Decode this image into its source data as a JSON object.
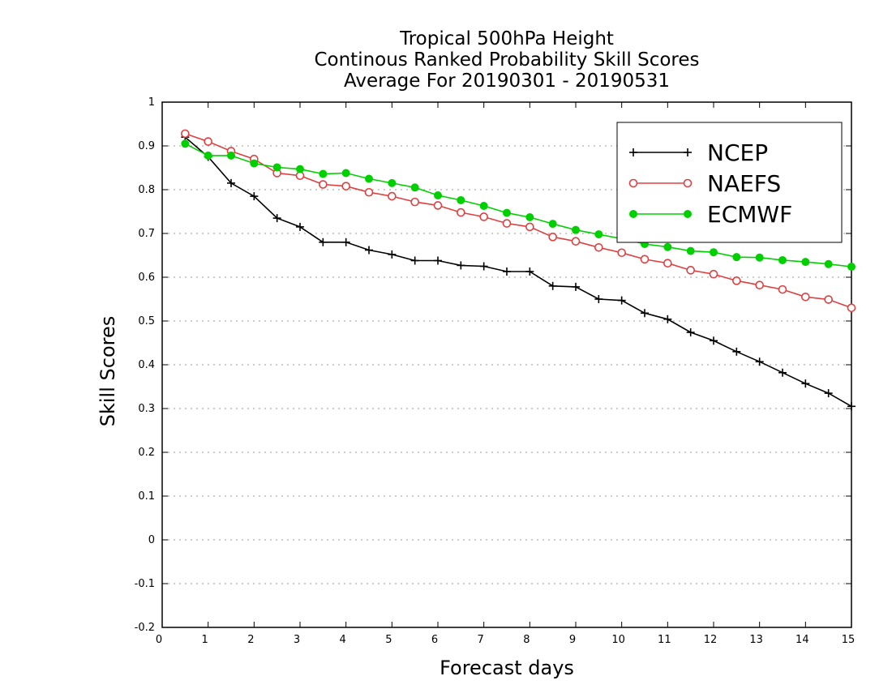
{
  "chart_data": {
    "type": "line",
    "title": [
      "Tropical 500hPa Height",
      "Continous Ranked Probability Skill Scores",
      "Average For 20190301 - 20190531"
    ],
    "xlabel": "Forecast days",
    "ylabel": "Skill Scores",
    "xlim": [
      0,
      15
    ],
    "ylim": [
      -0.2,
      1
    ],
    "xticks": [
      "0",
      "1",
      "2",
      "3",
      "4",
      "5",
      "6",
      "7",
      "8",
      "9",
      "10",
      "11",
      "12",
      "13",
      "14",
      "15"
    ],
    "yticks": [
      "-0.2",
      "-0.1",
      "0",
      "0.1",
      "0.2",
      "0.3",
      "0.4",
      "0.5",
      "0.6",
      "0.7",
      "0.8",
      "0.9",
      "1"
    ],
    "grid": "horizontal-dotted",
    "legend_position": "top-right",
    "x": [
      0.5,
      1,
      1.5,
      2,
      2.5,
      3,
      3.5,
      4,
      4.5,
      5,
      5.5,
      6,
      6.5,
      7,
      7.5,
      8,
      8.5,
      9,
      9.5,
      10,
      10.5,
      11,
      11.5,
      12,
      12.5,
      13,
      13.5,
      14,
      14.5,
      15
    ],
    "series": [
      {
        "name": "NCEP",
        "color": "#000000",
        "marker": "plus",
        "values": [
          0.92,
          0.875,
          0.815,
          0.785,
          0.735,
          0.715,
          0.68,
          0.68,
          0.662,
          0.652,
          0.638,
          0.638,
          0.627,
          0.625,
          0.613,
          0.613,
          0.58,
          0.578,
          0.55,
          0.547,
          0.518,
          0.504,
          0.474,
          0.455,
          0.43,
          0.407,
          0.382,
          0.357,
          0.335,
          0.305
        ]
      },
      {
        "name": "NAEFS",
        "color": "#e04040",
        "marker": "open-circle",
        "values": [
          0.928,
          0.91,
          0.888,
          0.87,
          0.838,
          0.832,
          0.812,
          0.808,
          0.794,
          0.785,
          0.772,
          0.764,
          0.748,
          0.738,
          0.723,
          0.715,
          0.692,
          0.682,
          0.668,
          0.656,
          0.641,
          0.632,
          0.616,
          0.607,
          0.592,
          0.582,
          0.572,
          0.555,
          0.549,
          0.53
        ]
      },
      {
        "name": "ECMWF",
        "color": "#00d000",
        "marker": "filled-circle",
        "values": [
          0.905,
          0.878,
          0.878,
          0.86,
          0.851,
          0.847,
          0.836,
          0.838,
          0.825,
          0.815,
          0.805,
          0.787,
          0.776,
          0.763,
          0.747,
          0.737,
          0.722,
          0.708,
          0.698,
          0.688,
          0.676,
          0.669,
          0.66,
          0.657,
          0.646,
          0.645,
          0.639,
          0.635,
          0.63,
          0.624
        ]
      }
    ]
  }
}
